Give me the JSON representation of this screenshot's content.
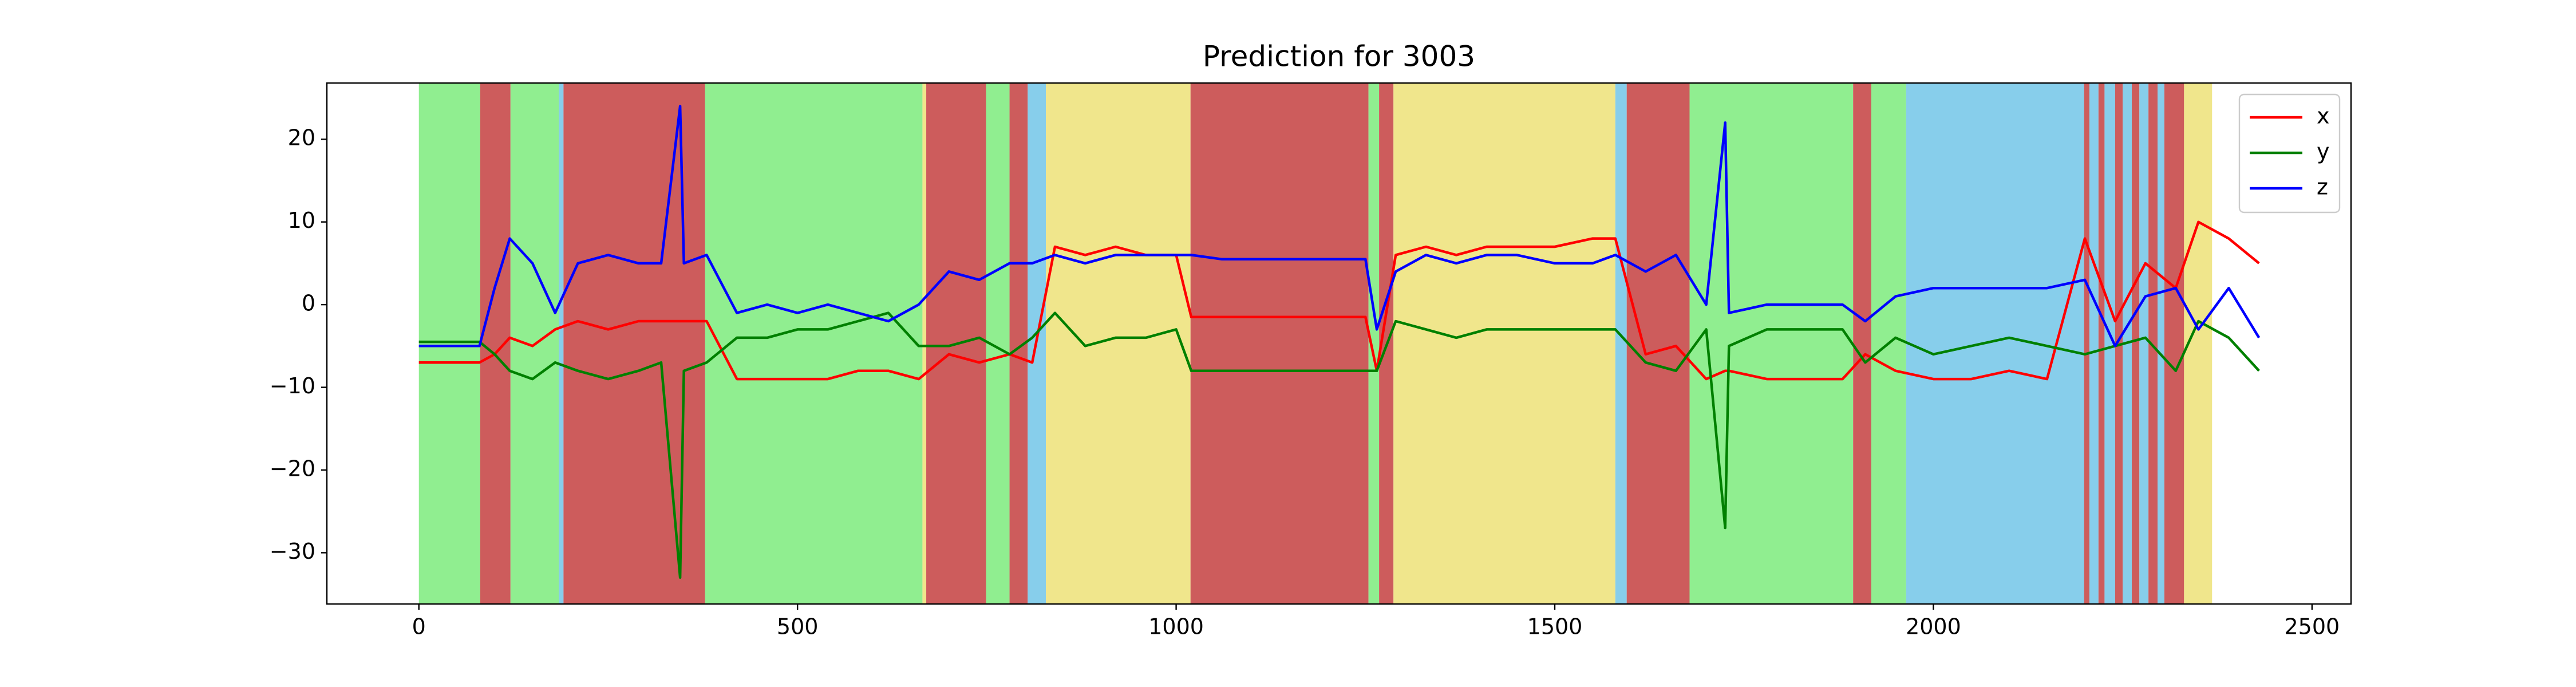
{
  "chart_data": {
    "type": "line",
    "title": "Prediction for 3003",
    "x": [
      0,
      40,
      80,
      100,
      120,
      150,
      180,
      210,
      250,
      290,
      320,
      345,
      350,
      380,
      420,
      460,
      500,
      540,
      580,
      620,
      660,
      700,
      740,
      780,
      810,
      840,
      880,
      920,
      960,
      1000,
      1020,
      1060,
      1100,
      1150,
      1200,
      1250,
      1265,
      1290,
      1330,
      1370,
      1410,
      1450,
      1500,
      1550,
      1580,
      1620,
      1660,
      1700,
      1725,
      1730,
      1780,
      1830,
      1880,
      1910,
      1950,
      2000,
      2050,
      2100,
      2150,
      2200,
      2240,
      2280,
      2320,
      2350,
      2390,
      2430
    ],
    "series": [
      {
        "name": "x",
        "color": "#ff0000",
        "values": [
          -7,
          -7,
          -7,
          -6,
          -4,
          -5,
          -3,
          -2,
          -3,
          -2,
          -2,
          -2,
          -2,
          -2,
          -9,
          -9,
          -9,
          -9,
          -8,
          -8,
          -9,
          -6,
          -7,
          -6,
          -7,
          7,
          6,
          7,
          6,
          6,
          -1.5,
          -1.5,
          -1.5,
          -1.5,
          -1.5,
          -1.5,
          -8,
          6,
          7,
          6,
          7,
          7,
          7,
          8,
          8,
          -6,
          -5,
          -9,
          -8,
          -8,
          -9,
          -9,
          -9,
          -6,
          -8,
          -9,
          -9,
          -8,
          -9,
          8,
          -2,
          5,
          2,
          10,
          8,
          5
        ]
      },
      {
        "name": "y",
        "color": "#008000",
        "values": [
          -4.5,
          -4.5,
          -4.5,
          -6,
          -8,
          -9,
          -7,
          -8,
          -9,
          -8,
          -7,
          -33,
          -8,
          -7,
          -4,
          -4,
          -3,
          -3,
          -2,
          -1,
          -5,
          -5,
          -4,
          -6,
          -4,
          -1,
          -5,
          -4,
          -4,
          -3,
          -8,
          -8,
          -8,
          -8,
          -8,
          -8,
          -8,
          -2,
          -3,
          -4,
          -3,
          -3,
          -3,
          -3,
          -3,
          -7,
          -8,
          -3,
          -27,
          -5,
          -3,
          -3,
          -3,
          -7,
          -4,
          -6,
          -5,
          -4,
          -5,
          -6,
          -5,
          -4,
          -8,
          -2,
          -4,
          -8
        ]
      },
      {
        "name": "z",
        "color": "#0000ff",
        "values": [
          -5,
          -5,
          -5,
          2,
          8,
          5,
          -1,
          5,
          6,
          5,
          5,
          24,
          5,
          6,
          -1,
          0,
          -1,
          0,
          -1,
          -2,
          0,
          4,
          3,
          5,
          5,
          6,
          5,
          6,
          6,
          6,
          6,
          5.5,
          5.5,
          5.5,
          5.5,
          5.5,
          -3,
          4,
          6,
          5,
          6,
          6,
          5,
          5,
          6,
          4,
          6,
          0,
          22,
          -1,
          0,
          0,
          0,
          -2,
          1,
          2,
          2,
          2,
          2,
          3,
          -5,
          1,
          2,
          -3,
          2,
          -4
        ]
      }
    ],
    "spans": [
      {
        "start": 0,
        "end": 81,
        "color": "lightgreen"
      },
      {
        "start": 81,
        "end": 121,
        "color": "indianred"
      },
      {
        "start": 121,
        "end": 185,
        "color": "lightgreen"
      },
      {
        "start": 185,
        "end": 191,
        "color": "skyblue"
      },
      {
        "start": 191,
        "end": 378,
        "color": "indianred"
      },
      {
        "start": 378,
        "end": 665,
        "color": "lightgreen"
      },
      {
        "start": 665,
        "end": 670,
        "color": "khaki"
      },
      {
        "start": 670,
        "end": 749,
        "color": "indianred"
      },
      {
        "start": 749,
        "end": 780,
        "color": "lightgreen"
      },
      {
        "start": 780,
        "end": 804,
        "color": "indianred"
      },
      {
        "start": 804,
        "end": 828,
        "color": "skyblue"
      },
      {
        "start": 828,
        "end": 1019,
        "color": "khaki"
      },
      {
        "start": 1019,
        "end": 1254,
        "color": "indianred"
      },
      {
        "start": 1254,
        "end": 1268,
        "color": "lightgreen"
      },
      {
        "start": 1268,
        "end": 1287,
        "color": "indianred"
      },
      {
        "start": 1287,
        "end": 1580,
        "color": "khaki"
      },
      {
        "start": 1580,
        "end": 1595,
        "color": "skyblue"
      },
      {
        "start": 1595,
        "end": 1678,
        "color": "indianred"
      },
      {
        "start": 1678,
        "end": 1894,
        "color": "lightgreen"
      },
      {
        "start": 1894,
        "end": 1918,
        "color": "indianred"
      },
      {
        "start": 1918,
        "end": 1964,
        "color": "lightgreen"
      },
      {
        "start": 1964,
        "end": 2199,
        "color": "skyblue"
      },
      {
        "start": 2199,
        "end": 2206,
        "color": "indianred"
      },
      {
        "start": 2206,
        "end": 2218,
        "color": "skyblue"
      },
      {
        "start": 2218,
        "end": 2226,
        "color": "indianred"
      },
      {
        "start": 2226,
        "end": 2240,
        "color": "skyblue"
      },
      {
        "start": 2240,
        "end": 2250,
        "color": "indianred"
      },
      {
        "start": 2250,
        "end": 2262,
        "color": "skyblue"
      },
      {
        "start": 2262,
        "end": 2272,
        "color": "indianred"
      },
      {
        "start": 2272,
        "end": 2284,
        "color": "skyblue"
      },
      {
        "start": 2284,
        "end": 2296,
        "color": "indianred"
      },
      {
        "start": 2296,
        "end": 2305,
        "color": "skyblue"
      },
      {
        "start": 2305,
        "end": 2331,
        "color": "indianred"
      },
      {
        "start": 2331,
        "end": 2368,
        "color": "khaki"
      }
    ],
    "xlim": [
      -121.5,
      2551.5
    ],
    "ylim": [
      -36.2,
      26.8
    ],
    "xticks": [
      0,
      500,
      1000,
      1500,
      2000,
      2500
    ],
    "yticks": [
      {
        "value": -30,
        "label": "−30"
      },
      {
        "value": -20,
        "label": "−20"
      },
      {
        "value": -10,
        "label": "−10"
      },
      0,
      10,
      20
    ],
    "legend": "upper right",
    "grid": false
  }
}
